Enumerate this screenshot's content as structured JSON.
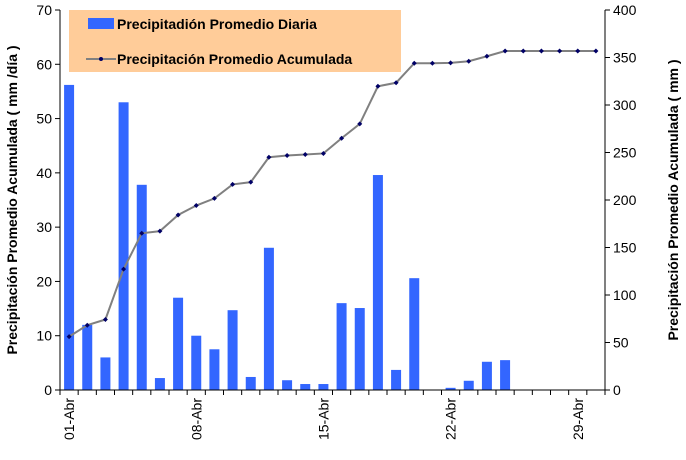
{
  "chart_data": {
    "type": "bar+line",
    "categories": [
      "01-Abr",
      "02-Abr",
      "03-Abr",
      "04-Abr",
      "05-Abr",
      "06-Abr",
      "07-Abr",
      "08-Abr",
      "09-Abr",
      "10-Abr",
      "11-Abr",
      "12-Abr",
      "13-Abr",
      "14-Abr",
      "15-Abr",
      "16-Abr",
      "17-Abr",
      "18-Abr",
      "19-Abr",
      "20-Abr",
      "21-Abr",
      "22-Abr",
      "23-Abr",
      "24-Abr",
      "25-Abr",
      "26-Abr",
      "27-Abr",
      "28-Abr",
      "29-Abr",
      "30-Abr"
    ],
    "tick_labels": [
      "01-Abr",
      "08-Abr",
      "15-Abr",
      "22-Abr",
      "29-Abr"
    ],
    "series": [
      {
        "name": "Precipitadión Promedio Diaria",
        "type": "bar",
        "axis": "left",
        "color": "#3366FF",
        "values": [
          56.2,
          12,
          6,
          53,
          37.8,
          2.2,
          17,
          10,
          7.5,
          14.7,
          2.4,
          26.2,
          1.8,
          1.1,
          1.1,
          16,
          15.1,
          39.6,
          3.7,
          20.6,
          0,
          0.4,
          1.7,
          5.2,
          5.5,
          0,
          0,
          0,
          0,
          0
        ]
      },
      {
        "name": "Precipitación Promedio Acumulada",
        "type": "line",
        "axis": "right",
        "color": "#808080",
        "marker_color": "#000066",
        "values": [
          56.2,
          68.2,
          74.2,
          127.2,
          165,
          167.2,
          184.2,
          194.2,
          201.7,
          216.4,
          218.8,
          245,
          246.8,
          247.9,
          249,
          265,
          280.1,
          319.7,
          323.4,
          344,
          344,
          344.4,
          346.1,
          351.3,
          356.8,
          356.8,
          356.8,
          356.8,
          356.8,
          356.8
        ]
      }
    ],
    "ylabel": "Precipitación Promedio Acumulada ( mm /día )",
    "y2label": "Precipitación Promedio Acumulada ( mm )",
    "ylim": [
      0,
      70
    ],
    "y2lim": [
      0,
      400
    ],
    "yticks": [
      0,
      10,
      20,
      30,
      40,
      50,
      60,
      70
    ],
    "y2ticks": [
      0,
      50,
      100,
      150,
      200,
      250,
      300,
      350,
      400
    ],
    "grid": false,
    "legend": "top-left",
    "legend_bg": "#FFCC99"
  }
}
